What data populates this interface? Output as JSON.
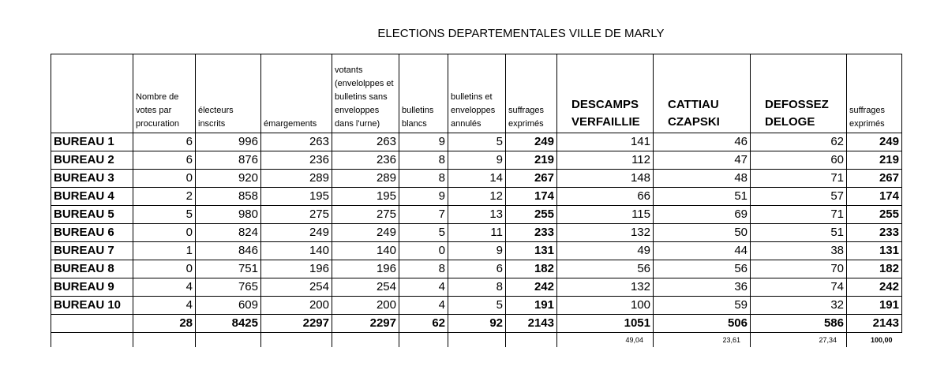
{
  "title": "ELECTIONS DEPARTEMENTALES VILLE DE MARLY",
  "headers": [
    "",
    "Nombre de votes par procuration",
    "électeurs inscrits",
    "émargements",
    "votants (envelolppes et bulletins sans enveloppes dans l'urne)",
    "bulletins blancs",
    "bulletins et enveloppes annulés",
    "suffrages exprimés",
    "DESCAMPS VERFAILLIE",
    "CATTIAU CZAPSKI",
    "DEFOSSEZ DELOGE",
    "suffrages exprimés"
  ],
  "rows": [
    [
      "BUREAU 1",
      "6",
      "996",
      "263",
      "263",
      "9",
      "5",
      "249",
      "141",
      "46",
      "62",
      "249"
    ],
    [
      "BUREAU 2",
      "6",
      "876",
      "236",
      "236",
      "8",
      "9",
      "219",
      "112",
      "47",
      "60",
      "219"
    ],
    [
      "BUREAU 3",
      "0",
      "920",
      "289",
      "289",
      "8",
      "14",
      "267",
      "148",
      "48",
      "71",
      "267"
    ],
    [
      "BUREAU 4",
      "2",
      "858",
      "195",
      "195",
      "9",
      "12",
      "174",
      "66",
      "51",
      "57",
      "174"
    ],
    [
      "BUREAU 5",
      "5",
      "980",
      "275",
      "275",
      "7",
      "13",
      "255",
      "115",
      "69",
      "71",
      "255"
    ],
    [
      "BUREAU 6",
      "0",
      "824",
      "249",
      "249",
      "5",
      "11",
      "233",
      "132",
      "50",
      "51",
      "233"
    ],
    [
      "BUREAU 7",
      "1",
      "846",
      "140",
      "140",
      "0",
      "9",
      "131",
      "49",
      "44",
      "38",
      "131"
    ],
    [
      "BUREAU 8",
      "0",
      "751",
      "196",
      "196",
      "8",
      "6",
      "182",
      "56",
      "56",
      "70",
      "182"
    ],
    [
      "BUREAU 9",
      "4",
      "765",
      "254",
      "254",
      "4",
      "8",
      "242",
      "132",
      "36",
      "74",
      "242"
    ],
    [
      "BUREAU 10",
      "4",
      "609",
      "200",
      "200",
      "4",
      "5",
      "191",
      "100",
      "59",
      "32",
      "191"
    ]
  ],
  "totals": [
    "",
    "28",
    "8425",
    "2297",
    "2297",
    "62",
    "92",
    "2143",
    "1051",
    "506",
    "586",
    "2143"
  ],
  "percentages": [
    "",
    "",
    "",
    "",
    "",
    "",
    "",
    "",
    "49,04",
    "23,61",
    "27,34",
    "100,00"
  ]
}
